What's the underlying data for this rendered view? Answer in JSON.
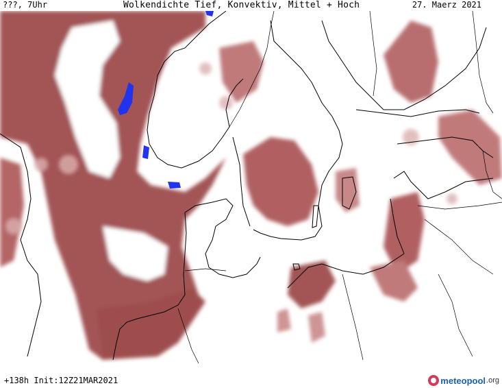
{
  "header": {
    "valid_time": "???, 7Uhr",
    "title": "Wolkendichte  Tief, Konvektiv, Mittel + Hoch",
    "date": "27. Maerz 2021"
  },
  "footer": {
    "run_info": "+138h Init:12Z21MAR2021",
    "logo_main": "meteopool",
    "logo_suffix": ".org"
  },
  "legend_colors": {
    "cloud_dense": "#9e4d4d",
    "cloud_medium": "#b86e6e",
    "cloud_light": "#dcb0b0",
    "snow_ice": "#2233ee",
    "coastline": "#000000"
  }
}
